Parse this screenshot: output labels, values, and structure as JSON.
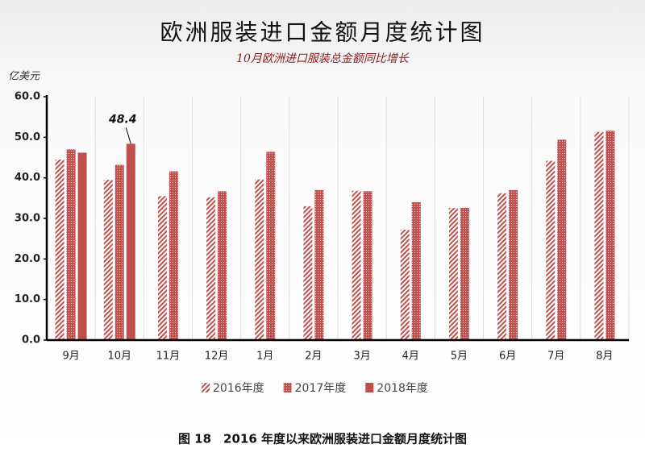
{
  "chart_data": {
    "type": "bar",
    "title": "欧洲服装进口金额月度统计图",
    "subtitle": "10月欧洲进口服装总金额同比增长",
    "y_label": "亿美元",
    "caption": "图 18　2016 年度以来欧洲服装进口金额月度统计图",
    "categories": [
      "9月",
      "10月",
      "11月",
      "12月",
      "1月",
      "2月",
      "3月",
      "4月",
      "5月",
      "6月",
      "7月",
      "8月"
    ],
    "series": [
      {
        "name": "2016年度",
        "color": "#c0504d",
        "pattern": "hatch",
        "values": [
          44.5,
          39.5,
          35.5,
          35.2,
          39.6,
          33.0,
          36.8,
          27.2,
          32.6,
          36.2,
          44.2,
          51.3
        ]
      },
      {
        "name": "2017年度",
        "color": "#c0504d",
        "pattern": "dots",
        "values": [
          47.0,
          43.2,
          41.6,
          36.7,
          46.4,
          37.0,
          36.7,
          34.0,
          32.6,
          37.0,
          49.4,
          51.6
        ]
      },
      {
        "name": "2018年度",
        "color": "#c0504d",
        "pattern": "solid",
        "values": [
          46.2,
          48.4,
          null,
          null,
          null,
          null,
          null,
          null,
          null,
          null,
          null,
          null
        ],
        "value_labels": [
          null,
          "48.4",
          null,
          null,
          null,
          null,
          null,
          null,
          null,
          null,
          null,
          null
        ]
      }
    ],
    "ylim": [
      0,
      60
    ],
    "yticks": [
      {
        "value": 0,
        "label": "0.0"
      },
      {
        "value": 10,
        "label": "10.0"
      },
      {
        "value": 20,
        "label": "20.0"
      },
      {
        "value": 30,
        "label": "30.0"
      },
      {
        "value": 40,
        "label": "40.0"
      },
      {
        "value": 50,
        "label": "50.0"
      },
      {
        "value": 60,
        "label": "60.0"
      }
    ],
    "legend": "bottom"
  }
}
